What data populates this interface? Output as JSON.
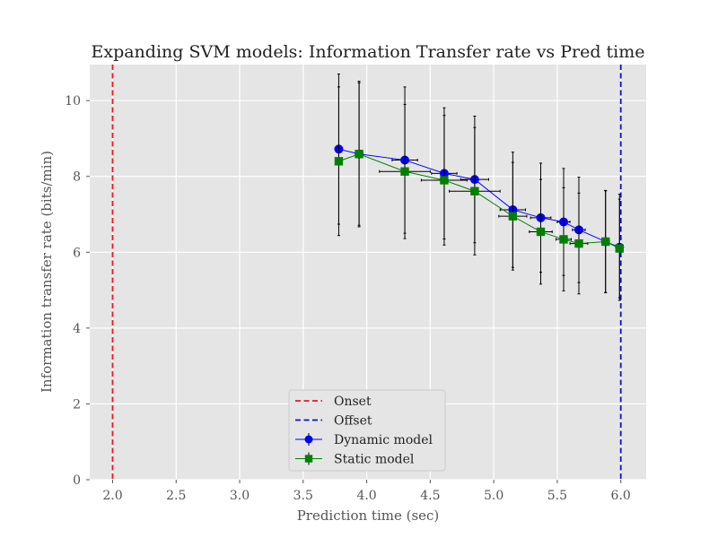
{
  "chart_data": {
    "type": "line",
    "title": "Expanding SVM models: Information Transfer rate vs Pred time",
    "xlabel": "Prediction time (sec)",
    "ylabel": "Information transfer rate (bits/min)",
    "xlim": [
      1.82,
      6.2
    ],
    "ylim": [
      0,
      10.95
    ],
    "xticks": [
      2.0,
      2.5,
      3.0,
      3.5,
      4.0,
      4.5,
      5.0,
      5.5,
      6.0
    ],
    "xtick_labels": [
      "2.0",
      "2.5",
      "3.0",
      "3.5",
      "4.0",
      "4.5",
      "5.0",
      "5.5",
      "6.0"
    ],
    "yticks": [
      0,
      2,
      4,
      6,
      8,
      10
    ],
    "ytick_labels": [
      "0",
      "2",
      "4",
      "6",
      "8",
      "10"
    ],
    "grid": true,
    "legend_position": "bottom-center",
    "vlines": [
      {
        "name": "Onset",
        "x": 2.0,
        "color": "#e8191b",
        "style": "dashed"
      },
      {
        "name": "Offset",
        "x": 6.0,
        "color": "#1010c8",
        "style": "dashed"
      }
    ],
    "series": [
      {
        "name": "Dynamic model",
        "color": "#0000ff",
        "marker": "circle",
        "x": [
          3.78,
          3.94,
          4.3,
          4.61,
          4.85,
          5.15,
          5.37,
          5.55,
          5.67,
          5.88,
          5.99
        ],
        "y": [
          8.72,
          8.59,
          8.43,
          8.08,
          7.92,
          7.12,
          6.91,
          6.8,
          6.59,
          6.28,
          6.13
        ],
        "yerr": [
          1.98,
          1.92,
          1.93,
          1.73,
          1.67,
          1.52,
          1.44,
          1.41,
          1.39,
          1.35,
          1.4
        ],
        "xerr": [
          0.0,
          0.0,
          0.1,
          0.1,
          0.11,
          0.1,
          0.08,
          0.05,
          0.05,
          0.0,
          0.0
        ]
      },
      {
        "name": "Static model",
        "color": "#008000",
        "marker": "square",
        "x": [
          3.78,
          3.94,
          4.3,
          4.61,
          4.85,
          5.15,
          5.37,
          5.55,
          5.67,
          5.88,
          5.99
        ],
        "y": [
          8.4,
          8.59,
          8.13,
          7.9,
          7.61,
          6.95,
          6.54,
          6.34,
          6.23,
          6.28,
          6.1
        ],
        "yerr": [
          1.96,
          1.88,
          1.77,
          1.71,
          1.68,
          1.42,
          1.38,
          1.36,
          1.33,
          1.34,
          1.3
        ],
        "xerr": [
          0.0,
          0.0,
          0.2,
          0.18,
          0.2,
          0.11,
          0.09,
          0.06,
          0.07,
          0.0,
          0.0
        ]
      }
    ]
  }
}
